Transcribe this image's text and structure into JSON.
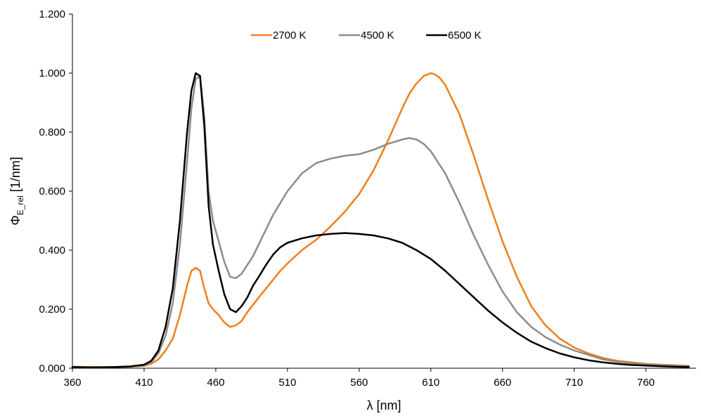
{
  "chart_data": {
    "type": "line",
    "title": "",
    "xlabel": "λ   [nm]",
    "ylabel": {
      "prefix": "Φ",
      "subscript": "E_rel",
      "unit": "   [1/nm]"
    },
    "xlim": [
      360,
      795
    ],
    "ylim": [
      0,
      1.2
    ],
    "x_ticks": [
      360,
      410,
      460,
      510,
      560,
      610,
      660,
      710,
      760
    ],
    "y_ticks": [
      "0.000",
      "0.200",
      "0.400",
      "0.600",
      "0.800",
      "1.000",
      "1.200"
    ],
    "y_tick_values": [
      0,
      0.2,
      0.4,
      0.6,
      0.8,
      1.0,
      1.2
    ],
    "grid": false,
    "legend_position": "top-center",
    "series": [
      {
        "name": "2700 K",
        "color": "#F07F1D",
        "x": [
          360,
          370,
          380,
          390,
          400,
          410,
          415,
          420,
          425,
          430,
          435,
          440,
          443,
          446,
          449,
          452,
          455,
          458,
          462,
          466,
          470,
          474,
          478,
          482,
          486,
          490,
          495,
          500,
          505,
          510,
          520,
          530,
          540,
          550,
          560,
          570,
          580,
          590,
          595,
          600,
          605,
          610,
          613,
          616,
          620,
          630,
          640,
          650,
          660,
          670,
          680,
          690,
          700,
          710,
          720,
          730,
          740,
          750,
          760,
          770,
          780,
          790
        ],
        "y": [
          0.005,
          0.004,
          0.004,
          0.004,
          0.005,
          0.008,
          0.015,
          0.03,
          0.06,
          0.1,
          0.18,
          0.28,
          0.33,
          0.34,
          0.33,
          0.27,
          0.22,
          0.2,
          0.18,
          0.155,
          0.14,
          0.145,
          0.16,
          0.19,
          0.215,
          0.24,
          0.27,
          0.3,
          0.33,
          0.355,
          0.4,
          0.435,
          0.48,
          0.53,
          0.59,
          0.67,
          0.77,
          0.88,
          0.93,
          0.965,
          0.99,
          1.0,
          0.995,
          0.985,
          0.96,
          0.86,
          0.72,
          0.57,
          0.43,
          0.31,
          0.21,
          0.145,
          0.1,
          0.07,
          0.05,
          0.035,
          0.025,
          0.02,
          0.015,
          0.012,
          0.01,
          0.008
        ]
      },
      {
        "name": "4500 K",
        "color": "#8C8C8C",
        "x": [
          360,
          370,
          380,
          390,
          400,
          410,
          415,
          420,
          425,
          430,
          435,
          440,
          443,
          446,
          449,
          452,
          455,
          458,
          462,
          466,
          470,
          474,
          478,
          482,
          486,
          490,
          495,
          500,
          505,
          510,
          520,
          530,
          540,
          550,
          560,
          570,
          580,
          590,
          595,
          600,
          605,
          610,
          620,
          630,
          640,
          650,
          660,
          670,
          680,
          690,
          700,
          710,
          720,
          730,
          740,
          750,
          760,
          770,
          780,
          790
        ],
        "y": [
          0.004,
          0.003,
          0.003,
          0.004,
          0.005,
          0.01,
          0.02,
          0.05,
          0.11,
          0.22,
          0.42,
          0.7,
          0.88,
          0.98,
          0.99,
          0.85,
          0.6,
          0.5,
          0.43,
          0.36,
          0.31,
          0.305,
          0.32,
          0.35,
          0.38,
          0.42,
          0.47,
          0.52,
          0.56,
          0.6,
          0.66,
          0.695,
          0.71,
          0.72,
          0.725,
          0.74,
          0.76,
          0.775,
          0.78,
          0.775,
          0.76,
          0.735,
          0.66,
          0.56,
          0.45,
          0.35,
          0.26,
          0.19,
          0.14,
          0.105,
          0.08,
          0.06,
          0.045,
          0.03,
          0.022,
          0.017,
          0.013,
          0.01,
          0.008,
          0.006
        ]
      },
      {
        "name": "6500 K",
        "color": "#000000",
        "x": [
          360,
          370,
          380,
          390,
          400,
          410,
          415,
          420,
          425,
          430,
          435,
          440,
          443,
          446,
          449,
          452,
          455,
          458,
          462,
          466,
          470,
          474,
          478,
          482,
          486,
          490,
          495,
          500,
          505,
          510,
          520,
          530,
          540,
          550,
          560,
          570,
          580,
          590,
          600,
          610,
          620,
          630,
          640,
          650,
          660,
          670,
          680,
          690,
          700,
          710,
          720,
          730,
          740,
          750,
          760,
          770,
          780,
          790
        ],
        "y": [
          0.004,
          0.003,
          0.003,
          0.004,
          0.006,
          0.012,
          0.025,
          0.06,
          0.14,
          0.27,
          0.5,
          0.8,
          0.94,
          1.0,
          0.99,
          0.82,
          0.55,
          0.42,
          0.33,
          0.25,
          0.2,
          0.19,
          0.21,
          0.24,
          0.28,
          0.31,
          0.35,
          0.385,
          0.41,
          0.425,
          0.44,
          0.45,
          0.455,
          0.458,
          0.455,
          0.45,
          0.44,
          0.425,
          0.4,
          0.37,
          0.33,
          0.285,
          0.24,
          0.195,
          0.155,
          0.12,
          0.09,
          0.068,
          0.05,
          0.037,
          0.027,
          0.02,
          0.015,
          0.011,
          0.009,
          0.007,
          0.005,
          0.004
        ]
      }
    ]
  }
}
